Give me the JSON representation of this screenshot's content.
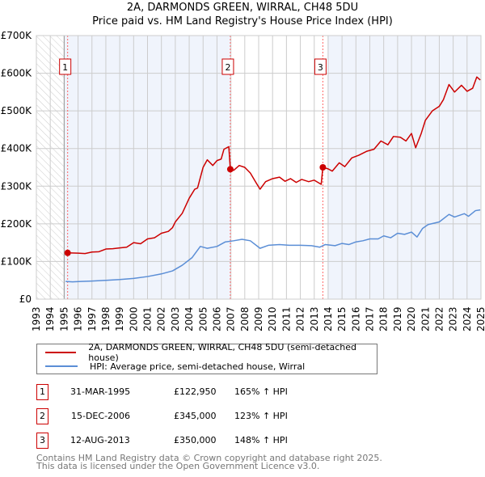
{
  "title_line1": "2A, DARMONDS GREEN, WIRRAL, CH48 5DU",
  "title_line2": "Price paid vs. HM Land Registry's House Price Index (HPI)",
  "chart_data": {
    "type": "line",
    "title": "2A, DARMONDS GREEN, WIRRAL, CH48 5DU - Price paid vs. HM Land Registry's House Price Index (HPI)",
    "xlim": [
      1993,
      2025
    ],
    "ylim": [
      0,
      700000
    ],
    "x_ticks": [
      "1993",
      "1994",
      "1995",
      "1996",
      "1997",
      "1998",
      "1999",
      "2000",
      "2001",
      "2002",
      "2003",
      "2004",
      "2005",
      "2006",
      "2007",
      "2008",
      "2009",
      "2010",
      "2011",
      "2012",
      "2013",
      "2014",
      "2015",
      "2016",
      "2017",
      "2018",
      "2019",
      "2020",
      "2021",
      "2022",
      "2023",
      "2024",
      "2025"
    ],
    "y_ticks": [
      {
        "v": 0,
        "label": "£0"
      },
      {
        "v": 100000,
        "label": "£100K"
      },
      {
        "v": 200000,
        "label": "£200K"
      },
      {
        "v": 300000,
        "label": "£300K"
      },
      {
        "v": 400000,
        "label": "£400K"
      },
      {
        "v": 500000,
        "label": "£500K"
      },
      {
        "v": 600000,
        "label": "£600K"
      },
      {
        "v": 700000,
        "label": "£700K"
      }
    ],
    "grid": true,
    "series": [
      {
        "name": "2A, DARMONDS GREEN, WIRRAL, CH48 5DU (semi-detached house)",
        "color": "#cc0000",
        "points": [
          [
            1995.25,
            123
          ],
          [
            1996,
            122
          ],
          [
            1996.5,
            121
          ],
          [
            1997,
            125
          ],
          [
            1997.5,
            126
          ],
          [
            1998,
            133
          ],
          [
            1998.5,
            134
          ],
          [
            1999,
            136
          ],
          [
            1999.5,
            138
          ],
          [
            2000,
            150
          ],
          [
            2000.5,
            147
          ],
          [
            2001,
            160
          ],
          [
            2001.5,
            163
          ],
          [
            2002,
            175
          ],
          [
            2002.5,
            180
          ],
          [
            2002.8,
            190
          ],
          [
            2003,
            205
          ],
          [
            2003.5,
            228
          ],
          [
            2004,
            268
          ],
          [
            2004.4,
            292
          ],
          [
            2004.6,
            295
          ],
          [
            2005,
            350
          ],
          [
            2005.3,
            370
          ],
          [
            2005.7,
            355
          ],
          [
            2006,
            368
          ],
          [
            2006.3,
            372
          ],
          [
            2006.5,
            398
          ],
          [
            2006.85,
            405
          ],
          [
            2006.96,
            345
          ],
          [
            2007.2,
            342
          ],
          [
            2007.6,
            355
          ],
          [
            2008,
            350
          ],
          [
            2008.4,
            335
          ],
          [
            2008.8,
            310
          ],
          [
            2009.1,
            292
          ],
          [
            2009.5,
            312
          ],
          [
            2010,
            320
          ],
          [
            2010.5,
            324
          ],
          [
            2010.9,
            313
          ],
          [
            2011.3,
            320
          ],
          [
            2011.7,
            310
          ],
          [
            2012.1,
            318
          ],
          [
            2012.6,
            312
          ],
          [
            2013,
            316
          ],
          [
            2013.5,
            305
          ],
          [
            2013.62,
            350
          ],
          [
            2014,
            346
          ],
          [
            2014.3,
            340
          ],
          [
            2014.8,
            362
          ],
          [
            2015.2,
            352
          ],
          [
            2015.7,
            375
          ],
          [
            2016.2,
            382
          ],
          [
            2016.8,
            393
          ],
          [
            2017.3,
            398
          ],
          [
            2017.8,
            420
          ],
          [
            2018.3,
            410
          ],
          [
            2018.7,
            432
          ],
          [
            2019.2,
            430
          ],
          [
            2019.6,
            420
          ],
          [
            2020,
            440
          ],
          [
            2020.3,
            402
          ],
          [
            2020.7,
            440
          ],
          [
            2021,
            475
          ],
          [
            2021.5,
            500
          ],
          [
            2022,
            512
          ],
          [
            2022.3,
            530
          ],
          [
            2022.7,
            570
          ],
          [
            2023.1,
            550
          ],
          [
            2023.6,
            568
          ],
          [
            2024,
            552
          ],
          [
            2024.4,
            560
          ],
          [
            2024.7,
            590
          ],
          [
            2024.95,
            582
          ]
        ]
      },
      {
        "name": "HPI: Average price, semi-detached house, Wirral",
        "color": "#5b8ed6",
        "points": [
          [
            1995.1,
            47
          ],
          [
            1995.6,
            46
          ],
          [
            1996.2,
            47
          ],
          [
            1997,
            48
          ],
          [
            1998,
            50
          ],
          [
            1999,
            52
          ],
          [
            2000,
            55
          ],
          [
            2001,
            60
          ],
          [
            2002,
            67
          ],
          [
            2002.8,
            75
          ],
          [
            2003.5,
            90
          ],
          [
            2004.2,
            110
          ],
          [
            2004.8,
            140
          ],
          [
            2005.3,
            135
          ],
          [
            2006,
            140
          ],
          [
            2006.6,
            152
          ],
          [
            2007.2,
            155
          ],
          [
            2007.8,
            159
          ],
          [
            2008.4,
            155
          ],
          [
            2009.1,
            135
          ],
          [
            2009.7,
            143
          ],
          [
            2010.5,
            145
          ],
          [
            2011.2,
            143
          ],
          [
            2012,
            143
          ],
          [
            2012.8,
            142
          ],
          [
            2013.4,
            138
          ],
          [
            2013.8,
            145
          ],
          [
            2014.5,
            142
          ],
          [
            2015,
            148
          ],
          [
            2015.5,
            145
          ],
          [
            2016,
            152
          ],
          [
            2016.5,
            155
          ],
          [
            2017,
            160
          ],
          [
            2017.6,
            160
          ],
          [
            2018,
            168
          ],
          [
            2018.5,
            163
          ],
          [
            2019,
            175
          ],
          [
            2019.5,
            172
          ],
          [
            2020,
            178
          ],
          [
            2020.4,
            165
          ],
          [
            2020.8,
            188
          ],
          [
            2021.2,
            198
          ],
          [
            2022,
            205
          ],
          [
            2022.7,
            225
          ],
          [
            2023.1,
            218
          ],
          [
            2023.8,
            227
          ],
          [
            2024.1,
            220
          ],
          [
            2024.6,
            235
          ],
          [
            2024.95,
            237
          ]
        ]
      }
    ],
    "sales": [
      {
        "n": "1",
        "year": 1995.25,
        "value": 122950,
        "date": "31-MAR-1995",
        "price": "£122,950",
        "hpi": "165% ↑ HPI"
      },
      {
        "n": "2",
        "year": 2006.96,
        "value": 345000,
        "date": "15-DEC-2006",
        "price": "£345,000",
        "hpi": "123% ↑ HPI"
      },
      {
        "n": "3",
        "year": 2013.62,
        "value": 350000,
        "date": "12-AUG-2013",
        "price": "£350,000",
        "hpi": "148% ↑ HPI"
      }
    ],
    "shaded_ranges": [
      [
        1995.0,
        2006.96
      ],
      [
        2013.95,
        2025
      ]
    ],
    "hatched_range": [
      1993,
      1995.0
    ]
  },
  "legend": {
    "property": "2A, DARMONDS GREEN, WIRRAL, CH48 5DU (semi-detached house)",
    "hpi": "HPI: Average price, semi-detached house, Wirral"
  },
  "footer": {
    "line1": "Contains HM Land Registry data © Crown copyright and database right 2025.",
    "line2": "This data is licensed under the Open Government Licence v3.0."
  }
}
